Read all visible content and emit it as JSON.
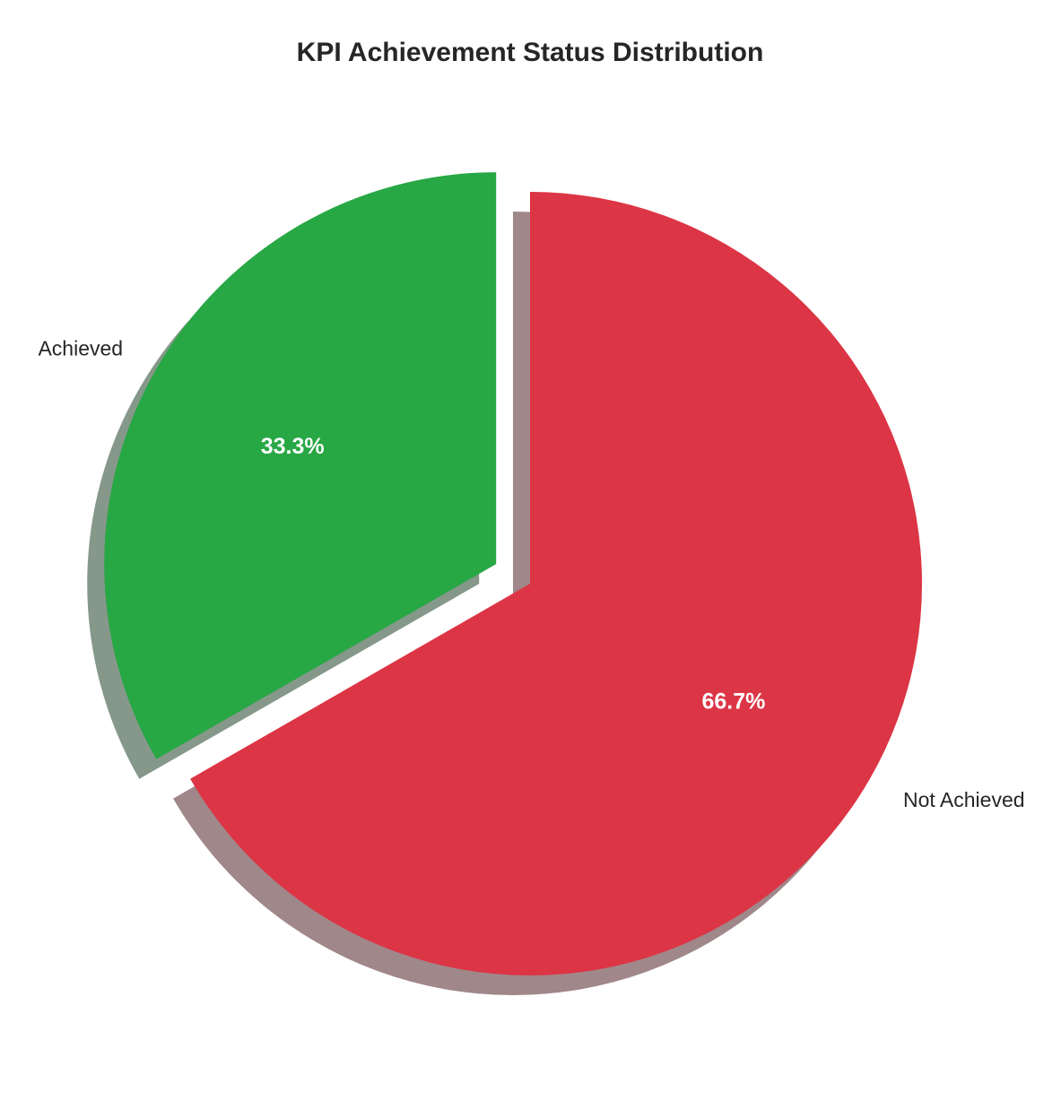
{
  "chart_data": {
    "type": "pie",
    "title": "KPI Achievement Status Distribution",
    "labels": [
      "Achieved",
      "Not Achieved"
    ],
    "values": [
      33.3,
      66.7
    ],
    "pct_labels": [
      "33.3%",
      "66.7%"
    ],
    "colors": [
      "#28a745",
      "#dc3545"
    ],
    "shadow_colors": [
      "rgba(12,50,21,0.5)",
      "rgba(66,16,21,0.5)"
    ],
    "explode": [
      0.1,
      0
    ],
    "start_angle": 90,
    "counterclockwise": true,
    "shadow": true,
    "pct_distance": 0.6,
    "label_distance": 1.1,
    "legend": "none",
    "background_color": "#ffffff",
    "title_color": "#262626",
    "label_color": "#262626",
    "pct_color": "#ffffff"
  }
}
